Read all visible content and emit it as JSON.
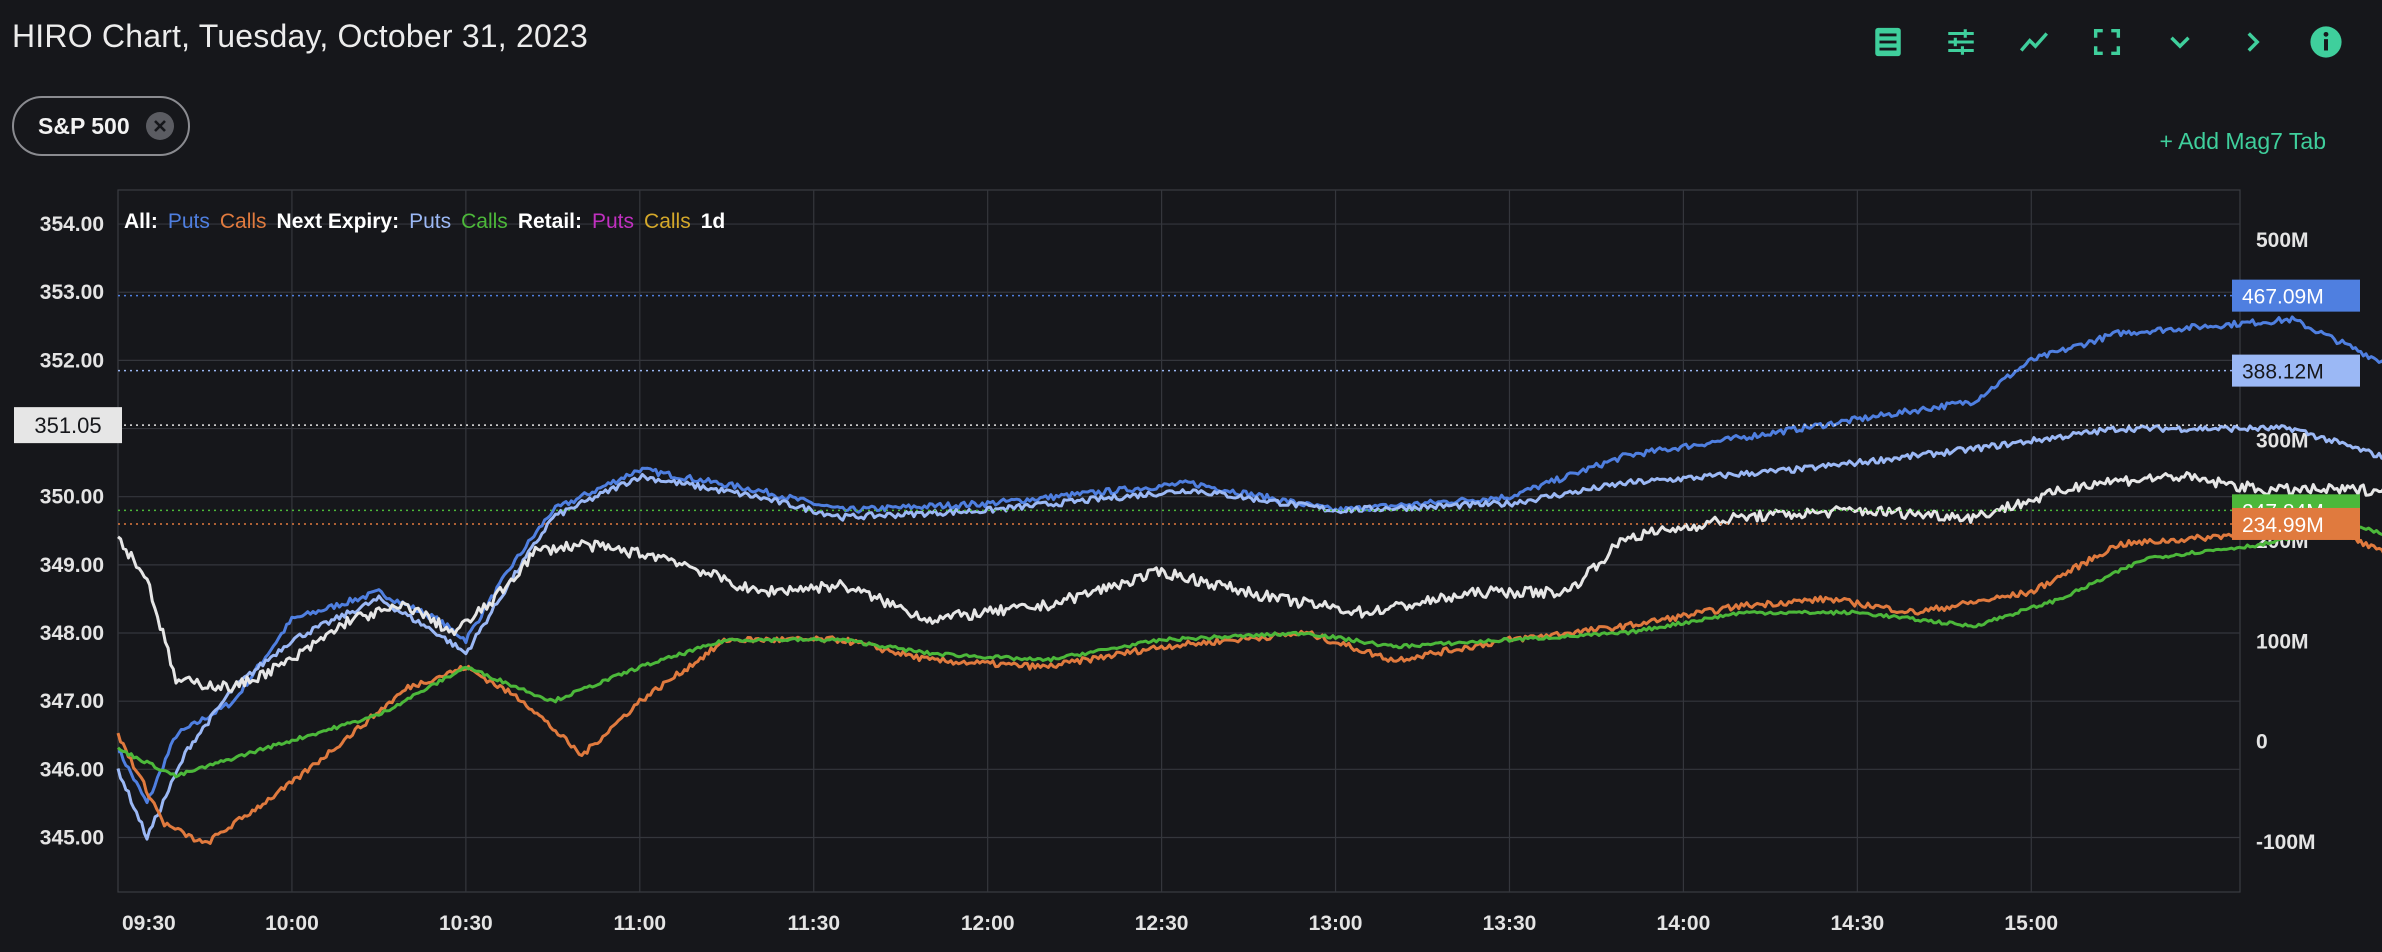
{
  "header": {
    "title": "HIRO Chart, Tuesday, October 31, 2023"
  },
  "toolbar": {
    "icons": [
      "list-icon",
      "sliders-icon",
      "trend-line-icon",
      "fullscreen-icon",
      "chevron-down-icon",
      "chevron-right-icon",
      "info-icon"
    ],
    "accent": "#3fcf9c"
  },
  "chip": {
    "label": "S&P 500"
  },
  "add_tab": {
    "label": "+ Add Mag7 Tab"
  },
  "colors": {
    "all_puts": "#4f7fe0",
    "all_calls": "#e07a3e",
    "next_puts": "#9bb8f5",
    "next_calls": "#4cb83a",
    "retail_puts": "#c030c0",
    "retail_calls": "#d4a82a",
    "price": "#e6e6e6"
  },
  "legend": {
    "all": "All:",
    "all_puts": "Puts",
    "all_calls": "Calls",
    "next": "Next Expiry:",
    "next_puts": "Puts",
    "next_calls": "Calls",
    "retail": "Retail:",
    "retail_puts": "Puts",
    "retail_calls": "Calls",
    "period": "1d"
  },
  "chart_data": {
    "type": "line",
    "x_ticks": [
      "09:30",
      "10:00",
      "10:30",
      "11:00",
      "11:30",
      "12:00",
      "12:30",
      "13:00",
      "13:30",
      "14:00",
      "14:30",
      "15:00"
    ],
    "x_start": "09:30",
    "x_end": "15:36",
    "y_left": {
      "ylim": [
        344.2,
        354.5
      ],
      "ticks": [
        "345.00",
        "346.00",
        "347.00",
        "348.00",
        "349.00",
        "350.00",
        "351.00",
        "352.00",
        "353.00",
        "354.00"
      ],
      "current_price": "351.05",
      "current_value": 351.05
    },
    "y_right": {
      "ylim": [
        -150,
        550
      ],
      "ticks": [
        "-100M",
        "0",
        "100M",
        "200M",
        "300M",
        "500M"
      ]
    },
    "end_labels": {
      "all_puts": "467.09M",
      "next_puts": "388.12M",
      "next_calls": "247.84M",
      "all_calls": "234.99M"
    },
    "series": [
      {
        "key": "all_puts",
        "values": [
          [
            0,
            346.3
          ],
          [
            5,
            345.5
          ],
          [
            10,
            346.5
          ],
          [
            20,
            347.0
          ],
          [
            30,
            348.2
          ],
          [
            45,
            348.6
          ],
          [
            55,
            348.2
          ],
          [
            60,
            347.9
          ],
          [
            68,
            349.0
          ],
          [
            75,
            349.8
          ],
          [
            90,
            350.4
          ],
          [
            110,
            350.1
          ],
          [
            125,
            349.8
          ],
          [
            150,
            349.9
          ],
          [
            185,
            350.2
          ],
          [
            210,
            349.8
          ],
          [
            240,
            350.0
          ],
          [
            260,
            350.6
          ],
          [
            290,
            351.0
          ],
          [
            320,
            351.4
          ],
          [
            330,
            352.0
          ],
          [
            345,
            352.4
          ],
          [
            375,
            352.6
          ],
          [
            390,
            352.0
          ],
          [
            400,
            351.8
          ],
          [
            420,
            352.3
          ],
          [
            445,
            352.7
          ],
          [
            455,
            353.2
          ],
          [
            466,
            353.0
          ]
        ]
      },
      {
        "key": "next_puts",
        "values": [
          [
            0,
            346.0
          ],
          [
            5,
            345.0
          ],
          [
            12,
            346.3
          ],
          [
            20,
            347.2
          ],
          [
            30,
            347.9
          ],
          [
            45,
            348.5
          ],
          [
            55,
            348.0
          ],
          [
            60,
            347.7
          ],
          [
            68,
            348.8
          ],
          [
            75,
            349.7
          ],
          [
            90,
            350.3
          ],
          [
            110,
            350.0
          ],
          [
            125,
            349.7
          ],
          [
            150,
            349.8
          ],
          [
            185,
            350.1
          ],
          [
            210,
            349.8
          ],
          [
            240,
            349.9
          ],
          [
            260,
            350.2
          ],
          [
            290,
            350.4
          ],
          [
            320,
            350.7
          ],
          [
            345,
            351.0
          ],
          [
            375,
            351.0
          ],
          [
            390,
            350.6
          ],
          [
            400,
            350.5
          ],
          [
            420,
            350.9
          ],
          [
            445,
            351.3
          ],
          [
            455,
            351.7
          ],
          [
            466,
            351.8
          ]
        ]
      },
      {
        "key": "all_calls",
        "values": [
          [
            0,
            346.5
          ],
          [
            8,
            345.2
          ],
          [
            15,
            344.9
          ],
          [
            30,
            345.8
          ],
          [
            40,
            346.5
          ],
          [
            50,
            347.2
          ],
          [
            60,
            347.5
          ],
          [
            70,
            347.0
          ],
          [
            80,
            346.2
          ],
          [
            90,
            347.0
          ],
          [
            105,
            347.9
          ],
          [
            125,
            347.9
          ],
          [
            140,
            347.6
          ],
          [
            160,
            347.5
          ],
          [
            180,
            347.8
          ],
          [
            205,
            348.0
          ],
          [
            220,
            347.6
          ],
          [
            240,
            347.9
          ],
          [
            260,
            348.1
          ],
          [
            280,
            348.4
          ],
          [
            295,
            348.5
          ],
          [
            310,
            348.3
          ],
          [
            330,
            348.6
          ],
          [
            345,
            349.3
          ],
          [
            360,
            349.4
          ],
          [
            380,
            349.6
          ],
          [
            395,
            349.0
          ],
          [
            410,
            349.0
          ],
          [
            430,
            349.1
          ],
          [
            450,
            349.4
          ],
          [
            466,
            349.6
          ]
        ]
      },
      {
        "key": "next_calls",
        "values": [
          [
            0,
            346.3
          ],
          [
            10,
            345.9
          ],
          [
            25,
            346.3
          ],
          [
            45,
            346.8
          ],
          [
            60,
            347.5
          ],
          [
            75,
            347.0
          ],
          [
            90,
            347.5
          ],
          [
            105,
            347.9
          ],
          [
            125,
            347.9
          ],
          [
            140,
            347.7
          ],
          [
            160,
            347.6
          ],
          [
            180,
            347.9
          ],
          [
            205,
            348.0
          ],
          [
            220,
            347.8
          ],
          [
            240,
            347.9
          ],
          [
            260,
            348.0
          ],
          [
            280,
            348.3
          ],
          [
            300,
            348.3
          ],
          [
            320,
            348.1
          ],
          [
            335,
            348.5
          ],
          [
            350,
            349.1
          ],
          [
            370,
            349.3
          ],
          [
            385,
            349.6
          ],
          [
            400,
            349.2
          ],
          [
            420,
            349.3
          ],
          [
            440,
            349.5
          ],
          [
            466,
            349.8
          ]
        ]
      },
      {
        "key": "price",
        "values": [
          [
            0,
            349.4
          ],
          [
            5,
            348.8
          ],
          [
            10,
            347.3
          ],
          [
            20,
            347.2
          ],
          [
            30,
            347.6
          ],
          [
            40,
            348.2
          ],
          [
            50,
            348.4
          ],
          [
            58,
            348.0
          ],
          [
            65,
            348.5
          ],
          [
            72,
            349.2
          ],
          [
            80,
            349.3
          ],
          [
            95,
            349.1
          ],
          [
            110,
            348.6
          ],
          [
            125,
            348.7
          ],
          [
            140,
            348.2
          ],
          [
            160,
            348.4
          ],
          [
            180,
            348.9
          ],
          [
            200,
            348.5
          ],
          [
            215,
            348.3
          ],
          [
            235,
            348.6
          ],
          [
            250,
            348.6
          ],
          [
            260,
            349.4
          ],
          [
            280,
            349.7
          ],
          [
            300,
            349.8
          ],
          [
            320,
            349.7
          ],
          [
            340,
            350.2
          ],
          [
            355,
            350.3
          ],
          [
            370,
            350.1
          ],
          [
            390,
            350.1
          ],
          [
            400,
            349.9
          ],
          [
            420,
            350.2
          ],
          [
            440,
            350.8
          ],
          [
            455,
            351.1
          ],
          [
            466,
            350.9
          ]
        ]
      }
    ]
  }
}
